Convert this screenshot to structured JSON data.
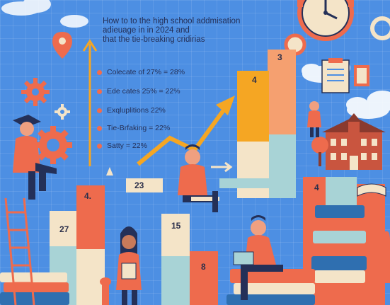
{
  "title_lines": [
    "How to to the high school addmisation",
    "adieuage in in 2024 and",
    "that the tie-breaking cridirias"
  ],
  "criteria": [
    "Colecate of 27% = 28%",
    "Ede cates 25% = 22%",
    "Exqluplitions 22%",
    "Tie-Brfaking = 22%",
    "Satty = 22%"
  ],
  "bar_numbers": [
    "3",
    "4",
    "23",
    "4.",
    "27",
    "15",
    "8",
    "4"
  ],
  "colors": {
    "background": "#4d8fe3",
    "coral": "#ee6b4d",
    "teal": "#a8d3d6",
    "cream": "#f4e4c8",
    "navy": "#243058",
    "arrow": "#f5a623"
  }
}
